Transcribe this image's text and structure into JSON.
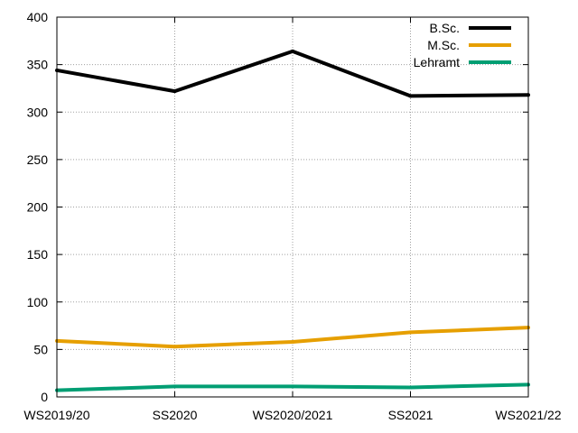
{
  "chart_data": {
    "type": "line",
    "title": "",
    "xlabel": "",
    "ylabel": "",
    "categories": [
      "WS2019/20",
      "SS2020",
      "WS2020/2021",
      "SS2021",
      "WS2021/22"
    ],
    "ylim": [
      0,
      400
    ],
    "yticks": [
      0,
      50,
      100,
      150,
      200,
      250,
      300,
      350,
      400
    ],
    "grid": true,
    "legend_position": "top-right",
    "series": [
      {
        "name": "B.Sc.",
        "color": "#000000",
        "values": [
          344,
          322,
          364,
          317,
          318
        ]
      },
      {
        "name": "M.Sc.",
        "color": "#e69f00",
        "values": [
          59,
          53,
          58,
          68,
          73
        ]
      },
      {
        "name": "Lehramt",
        "color": "#009e73",
        "values": [
          7,
          11,
          11,
          10,
          13
        ]
      }
    ]
  }
}
